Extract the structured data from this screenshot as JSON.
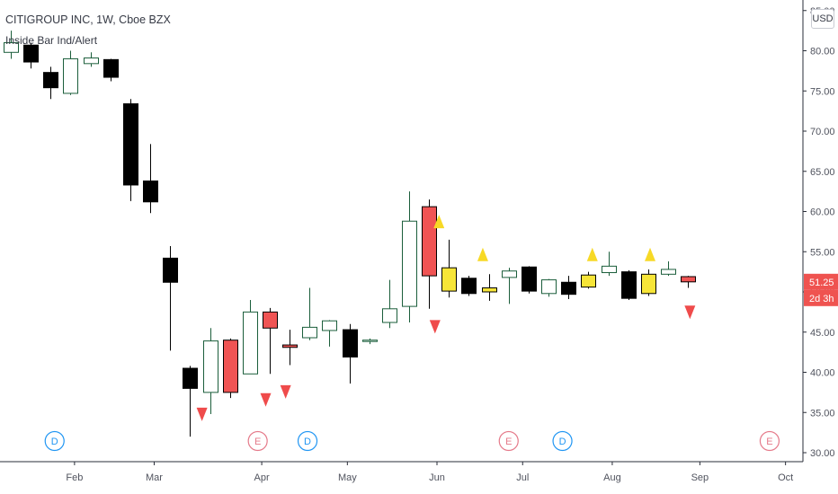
{
  "header": {
    "symbol_line": "CITIGROUP INC, 1W, Cboe BZX",
    "indicator_name": "Inside Bar Ind/Alert"
  },
  "currency_button": "USD",
  "price_tag": {
    "price": "51.25",
    "countdown": "2d 3h",
    "color": "#ef5350"
  },
  "colors": {
    "up_outline": "#1b5e3b",
    "black": "#000000",
    "red": "#f05454",
    "yellow": "#f7e538",
    "arrow_up": "#f7d926",
    "arrow_down": "#ef4b4b",
    "dividend": "#2196f3",
    "earnings": "#e57a8a"
  },
  "chart_data": {
    "type": "candlestick",
    "interval": "1W",
    "ylim": [
      30,
      85
    ],
    "yticks": [
      30,
      35,
      40,
      45,
      50,
      55,
      60,
      65,
      70,
      75,
      80,
      85
    ],
    "ytick_labels": [
      "30.00",
      "35.00",
      "40.00",
      "45.00",
      "50.00",
      "55.00",
      "60.00",
      "65.00",
      "70.00",
      "75.00",
      "80.00",
      "85.00"
    ],
    "xticks": [
      {
        "label": "Feb",
        "week": 3.2
      },
      {
        "label": "Mar",
        "week": 7.2
      },
      {
        "label": "Apr",
        "week": 12.6
      },
      {
        "label": "May",
        "week": 16.9
      },
      {
        "label": "Jun",
        "week": 21.4
      },
      {
        "label": "Jul",
        "week": 25.7
      },
      {
        "label": "Aug",
        "week": 30.2
      },
      {
        "label": "Sep",
        "week": 34.6
      },
      {
        "label": "Oct",
        "week": 38.9
      }
    ],
    "candles": [
      {
        "week": 0,
        "open": 79.8,
        "high": 82.5,
        "low": 79.0,
        "close": 81.0,
        "style": "up"
      },
      {
        "week": 1,
        "open": 80.7,
        "high": 81.0,
        "low": 77.8,
        "close": 78.6,
        "style": "down"
      },
      {
        "week": 2,
        "open": 77.3,
        "high": 78.0,
        "low": 74.0,
        "close": 75.4,
        "style": "down"
      },
      {
        "week": 3,
        "open": 74.7,
        "high": 80.0,
        "low": 74.5,
        "close": 79.0,
        "style": "up"
      },
      {
        "week": 4,
        "open": 78.4,
        "high": 79.8,
        "low": 78.0,
        "close": 79.1,
        "style": "up"
      },
      {
        "week": 5,
        "open": 78.9,
        "high": 79.0,
        "low": 76.2,
        "close": 76.7,
        "style": "down"
      },
      {
        "week": 6,
        "open": 73.4,
        "high": 74.0,
        "low": 61.3,
        "close": 63.3,
        "style": "down"
      },
      {
        "week": 7,
        "open": 63.8,
        "high": 68.4,
        "low": 59.8,
        "close": 61.2,
        "style": "down"
      },
      {
        "week": 8,
        "open": 54.2,
        "high": 55.7,
        "low": 42.7,
        "close": 51.2,
        "style": "down"
      },
      {
        "week": 9,
        "open": 40.5,
        "high": 40.8,
        "low": 32.0,
        "close": 38.0,
        "style": "down"
      },
      {
        "week": 10,
        "open": 37.5,
        "high": 45.5,
        "low": 34.8,
        "close": 43.9,
        "style": "up"
      },
      {
        "week": 11,
        "open": 44.0,
        "high": 44.2,
        "low": 36.8,
        "close": 37.5,
        "style": "red"
      },
      {
        "week": 12,
        "open": 39.8,
        "high": 49.0,
        "low": 39.8,
        "close": 47.5,
        "style": "up"
      },
      {
        "week": 13,
        "open": 47.5,
        "high": 48.0,
        "low": 39.8,
        "close": 45.5,
        "style": "red"
      },
      {
        "week": 14,
        "open": 43.4,
        "high": 45.3,
        "low": 40.9,
        "close": 43.1,
        "style": "red"
      },
      {
        "week": 15,
        "open": 44.3,
        "high": 50.5,
        "low": 44.0,
        "close": 45.6,
        "style": "up"
      },
      {
        "week": 16,
        "open": 45.2,
        "high": 46.5,
        "low": 43.2,
        "close": 46.4,
        "style": "up"
      },
      {
        "week": 17,
        "open": 45.3,
        "high": 46.0,
        "low": 38.6,
        "close": 41.9,
        "style": "down"
      },
      {
        "week": 18,
        "open": 44.0,
        "high": 44.2,
        "low": 43.5,
        "close": 44.0,
        "style": "up"
      },
      {
        "week": 19,
        "open": 46.2,
        "high": 51.5,
        "low": 45.5,
        "close": 47.9,
        "style": "up"
      },
      {
        "week": 20,
        "open": 48.2,
        "high": 62.5,
        "low": 46.2,
        "close": 58.8,
        "style": "up"
      },
      {
        "week": 21,
        "open": 60.6,
        "high": 61.5,
        "low": 47.9,
        "close": 52.0,
        "style": "red"
      },
      {
        "week": 22,
        "open": 53.0,
        "high": 56.5,
        "low": 49.3,
        "close": 50.1,
        "style": "yellow"
      },
      {
        "week": 23,
        "open": 51.7,
        "high": 52.0,
        "low": 49.5,
        "close": 49.8,
        "style": "down"
      },
      {
        "week": 24,
        "open": 50.0,
        "high": 52.2,
        "low": 48.9,
        "close": 50.5,
        "style": "yellow"
      },
      {
        "week": 25,
        "open": 51.8,
        "high": 53.0,
        "low": 48.5,
        "close": 52.6,
        "style": "up"
      },
      {
        "week": 26,
        "open": 53.1,
        "high": 53.2,
        "low": 49.8,
        "close": 50.1,
        "style": "down"
      },
      {
        "week": 27,
        "open": 51.5,
        "high": 51.6,
        "low": 49.4,
        "close": 49.8,
        "style": "up"
      },
      {
        "week": 28,
        "open": 51.2,
        "high": 52.0,
        "low": 49.1,
        "close": 49.7,
        "style": "down"
      },
      {
        "week": 29,
        "open": 50.6,
        "high": 52.5,
        "low": 50.4,
        "close": 52.1,
        "style": "yellow"
      },
      {
        "week": 30,
        "open": 52.4,
        "high": 55.0,
        "low": 52.0,
        "close": 53.2,
        "style": "up"
      },
      {
        "week": 31,
        "open": 52.5,
        "high": 52.7,
        "low": 49.0,
        "close": 49.2,
        "style": "down"
      },
      {
        "week": 32,
        "open": 52.2,
        "high": 52.8,
        "low": 49.5,
        "close": 49.8,
        "style": "yellow"
      },
      {
        "week": 33,
        "open": 52.2,
        "high": 53.8,
        "low": 52.0,
        "close": 52.8,
        "style": "up"
      },
      {
        "week": 34,
        "open": 51.9,
        "high": 52.0,
        "low": 50.5,
        "close": 51.25,
        "style": "red"
      }
    ],
    "arrows": [
      {
        "week": 9.6,
        "direction": "down",
        "price": 35.6
      },
      {
        "week": 12.8,
        "direction": "down",
        "price": 37.4
      },
      {
        "week": 13.8,
        "direction": "down",
        "price": 38.4
      },
      {
        "week": 21.3,
        "direction": "down",
        "price": 46.5
      },
      {
        "week": 21.5,
        "direction": "up",
        "price": 59.6
      },
      {
        "week": 23.7,
        "direction": "up",
        "price": 55.5
      },
      {
        "week": 29.2,
        "direction": "up",
        "price": 55.5
      },
      {
        "week": 32.1,
        "direction": "up",
        "price": 55.5
      },
      {
        "week": 34.1,
        "direction": "down",
        "price": 48.3
      }
    ],
    "event_markers": [
      {
        "week": 2.2,
        "letter": "D",
        "type": "dividend"
      },
      {
        "week": 12.4,
        "letter": "E",
        "type": "earnings"
      },
      {
        "week": 14.9,
        "letter": "D",
        "type": "dividend"
      },
      {
        "week": 25.0,
        "letter": "E",
        "type": "earnings"
      },
      {
        "week": 27.7,
        "letter": "D",
        "type": "dividend"
      },
      {
        "week": 38.1,
        "letter": "E",
        "type": "earnings"
      }
    ]
  }
}
